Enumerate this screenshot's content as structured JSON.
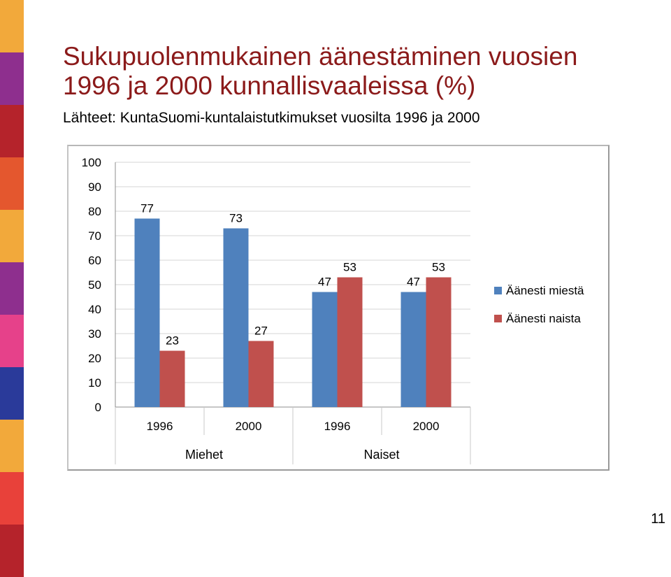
{
  "slide": {
    "title_line1": "Sukupuolenmukainen äänestäminen vuosien",
    "title_line2": "1996 ja 2000 kunnallisvaaleissa (%)",
    "source": "Lähteet: KuntaSuomi-kuntalaistutkimukset vuosilta 1996 ja 2000",
    "page_number": "11",
    "title_color": "#8b1a1a",
    "stripe_colors": [
      "#f2a93b",
      "#8e2f8e",
      "#b5232b",
      "#e4572e",
      "#f2a93b",
      "#8e2f8e",
      "#e6418a",
      "#2a3a9a",
      "#f2a93b",
      "#e8413a",
      "#b5232b"
    ]
  },
  "chart_data": {
    "type": "bar",
    "categories": [
      "1996",
      "2000",
      "1996",
      "2000"
    ],
    "groups": [
      {
        "label": "Miehet",
        "categories": [
          "1996",
          "2000"
        ]
      },
      {
        "label": "Naiset",
        "categories": [
          "1996",
          "2000"
        ]
      }
    ],
    "series": [
      {
        "name": "Äänesti miestä",
        "color": "#4f81bd",
        "values": [
          77,
          73,
          47,
          47
        ]
      },
      {
        "name": "Äänesti naista",
        "color": "#c0504d",
        "values": [
          23,
          27,
          53,
          53
        ]
      }
    ],
    "y_ticks": [
      "0",
      "10",
      "20",
      "30",
      "40",
      "50",
      "60",
      "70",
      "80",
      "90",
      "100"
    ],
    "ylim": [
      0,
      100
    ],
    "grid": true,
    "legend_position": "right",
    "data_labels": true
  }
}
